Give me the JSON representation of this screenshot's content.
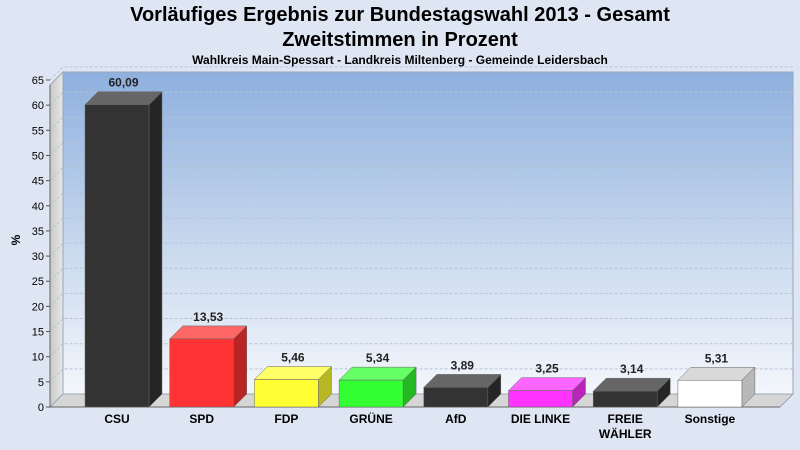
{
  "header": {
    "title_line1": "Vorläufiges Ergebnis zur Bundestagswahl 2013 - Gesamt",
    "title_line2": "Zweitstimmen in Prozent",
    "subtitle": "Wahlkreis Main-Spessart - Landkreis Miltenberg - Gemeinde Leidersbach"
  },
  "chart_data": {
    "type": "bar",
    "title": "Vorläufiges Ergebnis zur Bundestagswahl 2013 - Gesamt",
    "subtitle": "Zweitstimmen in Prozent",
    "ylabel": "%",
    "xlabel": "",
    "ylim": [
      0,
      68
    ],
    "yticks": [
      0,
      5,
      10,
      15,
      20,
      25,
      30,
      35,
      40,
      45,
      50,
      55,
      60,
      65
    ],
    "grid": true,
    "bar_style": "3d",
    "categories": [
      "CSU",
      "SPD",
      "FDP",
      "GRÜNE",
      "AfD",
      "DIE LINKE",
      "FREIE WÄHLER",
      "Sonstige"
    ],
    "values": [
      60.09,
      13.53,
      5.46,
      5.34,
      3.89,
      3.25,
      3.14,
      5.31
    ],
    "value_labels": [
      "60,09",
      "13,53",
      "5,46",
      "5,34",
      "3,89",
      "3,25",
      "3,14",
      "5,31"
    ],
    "colors": [
      "#333333",
      "#ff3333",
      "#ffff33",
      "#33ff33",
      "#333333",
      "#ff33ff",
      "#333333",
      "#ffffff"
    ]
  }
}
